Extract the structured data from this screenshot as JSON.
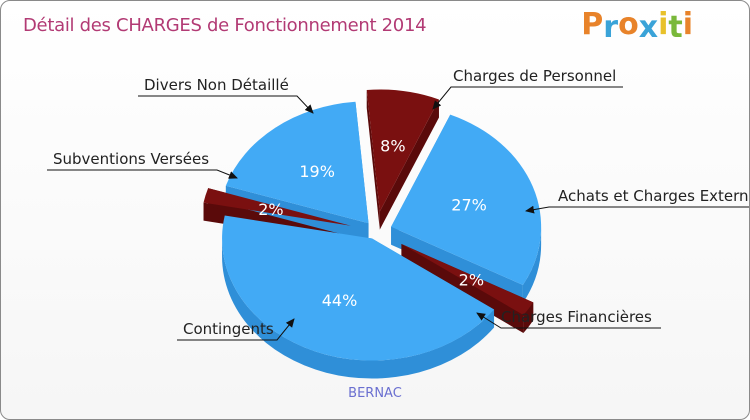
{
  "header": {
    "title": "Détail des CHARGES de Fonctionnement 2014"
  },
  "logo": {
    "text": "Proxiti",
    "letters": [
      "P",
      "r",
      "o",
      "x",
      "i",
      "t",
      "i"
    ],
    "letter_colors": [
      "#e8832a",
      "#3aa3d8",
      "#e8832a",
      "#3aa3d8",
      "#e8c12a",
      "#79b83a",
      "#e8832a"
    ]
  },
  "footer": {
    "name": "BERNAC"
  },
  "colors": {
    "blue": "#42aaf5",
    "blue_side": "#2f8fd8",
    "red": "#7a1010",
    "red_side": "#5a0a0a"
  },
  "chart_data": {
    "type": "pie",
    "title": "Détail des CHARGES de Fonctionnement 2014",
    "slices": [
      {
        "label": "Charges de Personnel",
        "value": 8,
        "pct_label": "8%",
        "color": "red"
      },
      {
        "label": "Achats et Charges Externes",
        "value": 27,
        "pct_label": "27%",
        "color": "blue"
      },
      {
        "label": "Charges Financières",
        "value": 2,
        "pct_label": "2%",
        "color": "red"
      },
      {
        "label": "Contingents",
        "value": 44,
        "pct_label": "44%",
        "color": "blue"
      },
      {
        "label": "Subventions Versées",
        "value": 2,
        "pct_label": "2%",
        "color": "red"
      },
      {
        "label": "Divers Non Détaillé",
        "value": 19,
        "pct_label": "19%",
        "color": "blue"
      }
    ]
  }
}
